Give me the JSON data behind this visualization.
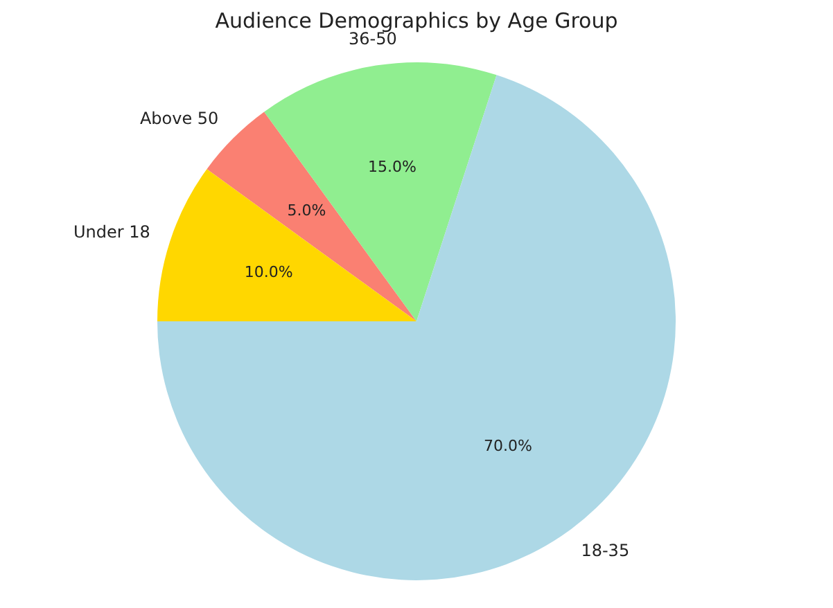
{
  "chart_data": {
    "type": "pie",
    "title": "Audience Demographics by Age Group",
    "categories": [
      "Under 18",
      "18-35",
      "36-50",
      "Above 50"
    ],
    "values": [
      10,
      70,
      15,
      5
    ],
    "colors": [
      "#ffd700",
      "#add8e6",
      "#90ee90",
      "#fa8072"
    ],
    "value_labels": [
      "10.0%",
      "70.0%",
      "15.0%",
      "5.0%"
    ],
    "legend": false
  }
}
